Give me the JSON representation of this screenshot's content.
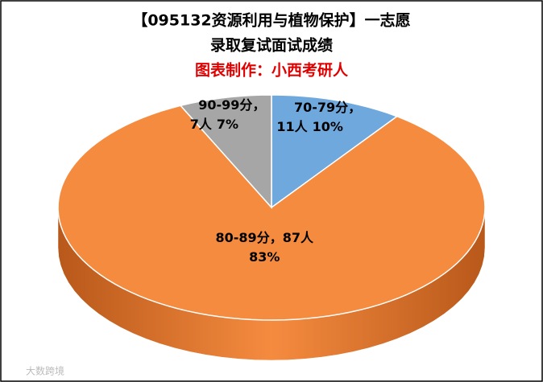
{
  "chart_data": {
    "type": "pie",
    "title": "【095132资源利用与植物保护】一志愿",
    "title2": "录取复试面试成绩",
    "subtitle": "图表制作：小西考研人",
    "categories": [
      "70-79分",
      "80-89分",
      "90-99分"
    ],
    "label_separator": "，",
    "counts": [
      11,
      87,
      7
    ],
    "count_labels": [
      "11人",
      "87人",
      "7人"
    ],
    "values": [
      10,
      83,
      7
    ],
    "value_labels": [
      "10%",
      "83%",
      "7%"
    ],
    "colors": [
      "#6fa8dc",
      "#f58b3f",
      "#a6a6a6"
    ],
    "side_colors": [
      "#3f78ac",
      "#b8581a",
      "#707070"
    ],
    "watermark": "大数跨境"
  }
}
